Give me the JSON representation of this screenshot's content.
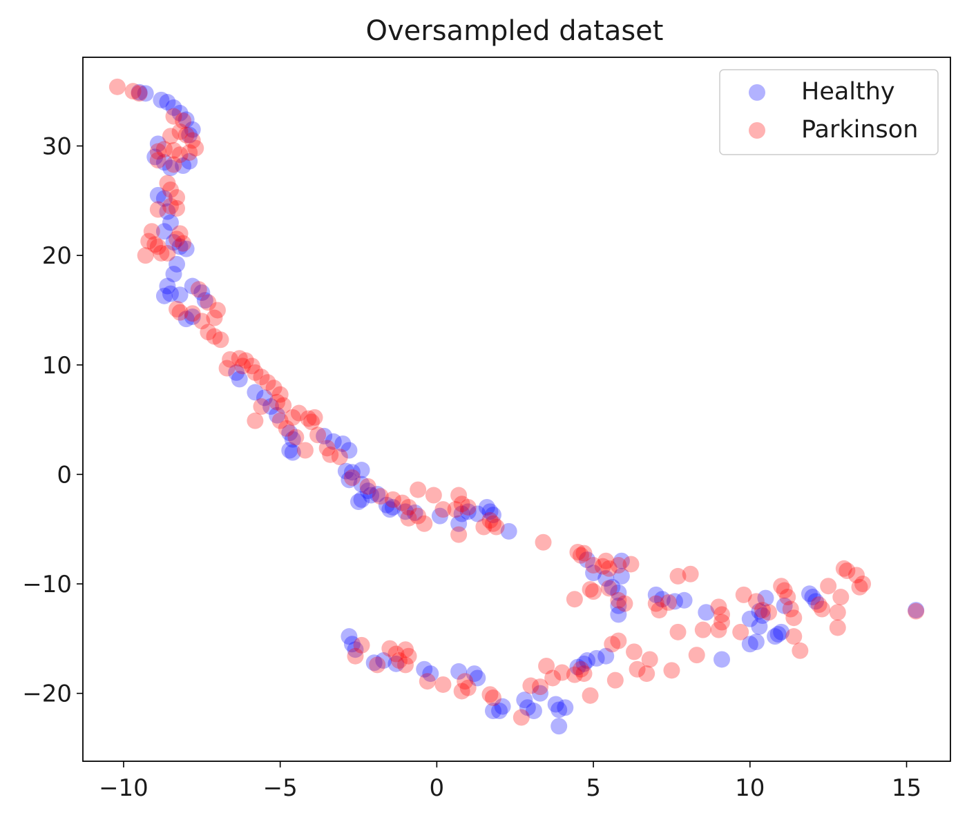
{
  "chart_data": {
    "type": "scatter",
    "title": "Oversampled dataset",
    "xlabel": "",
    "ylabel": "",
    "xlim": [
      -11.3,
      16.4
    ],
    "ylim": [
      -26.2,
      38.1
    ],
    "xticks": [
      -10,
      -5,
      0,
      5,
      10,
      15
    ],
    "yticks": [
      -20,
      -10,
      0,
      10,
      20,
      30
    ],
    "xtick_labels": [
      "−10",
      "−5",
      "0",
      "5",
      "10",
      "15"
    ],
    "ytick_labels": [
      "−20",
      "−10",
      "0",
      "10",
      "20",
      "30"
    ],
    "grid": false,
    "legend_position": "top-right",
    "series": [
      {
        "name": "Healthy",
        "color": "#0000ff",
        "alpha": 0.3,
        "points": [
          [
            -9.5,
            34.9
          ],
          [
            -9.3,
            34.8
          ],
          [
            -8.8,
            34.2
          ],
          [
            -8.6,
            34.0
          ],
          [
            -8.4,
            33.5
          ],
          [
            -8.2,
            33.0
          ],
          [
            -8.0,
            32.4
          ],
          [
            -7.8,
            31.5
          ],
          [
            -7.9,
            31.0
          ],
          [
            -8.9,
            30.2
          ],
          [
            -9.0,
            29.0
          ],
          [
            -8.7,
            28.5
          ],
          [
            -8.5,
            28.0
          ],
          [
            -8.1,
            28.2
          ],
          [
            -7.9,
            28.6
          ],
          [
            -8.9,
            25.5
          ],
          [
            -8.7,
            25.2
          ],
          [
            -8.6,
            24.0
          ],
          [
            -8.5,
            23.0
          ],
          [
            -8.7,
            22.2
          ],
          [
            -8.4,
            21.2
          ],
          [
            -8.2,
            20.8
          ],
          [
            -8.0,
            20.6
          ],
          [
            -8.3,
            19.2
          ],
          [
            -8.4,
            18.3
          ],
          [
            -8.6,
            17.2
          ],
          [
            -8.7,
            16.3
          ],
          [
            -8.5,
            16.5
          ],
          [
            -8.2,
            16.4
          ],
          [
            -7.8,
            17.2
          ],
          [
            -7.5,
            16.6
          ],
          [
            -7.4,
            15.9
          ],
          [
            -8.0,
            14.2
          ],
          [
            -7.8,
            14.4
          ],
          [
            -6.4,
            9.3
          ],
          [
            -6.3,
            8.7
          ],
          [
            -5.8,
            7.5
          ],
          [
            -5.5,
            7.0
          ],
          [
            -5.3,
            6.2
          ],
          [
            -5.1,
            5.4
          ],
          [
            -4.7,
            3.8
          ],
          [
            -4.6,
            3.2
          ],
          [
            -4.7,
            2.2
          ],
          [
            -4.6,
            2.0
          ],
          [
            -3.6,
            3.5
          ],
          [
            -3.3,
            3.0
          ],
          [
            -3.0,
            2.8
          ],
          [
            -2.8,
            2.2
          ],
          [
            -2.9,
            0.3
          ],
          [
            -2.7,
            0.2
          ],
          [
            -2.4,
            0.4
          ],
          [
            -2.8,
            -0.5
          ],
          [
            -2.4,
            -0.9
          ],
          [
            -2.2,
            -1.5
          ],
          [
            -2.4,
            -2.3
          ],
          [
            -2.5,
            -2.5
          ],
          [
            -2.1,
            -1.9
          ],
          [
            -1.9,
            -1.8
          ],
          [
            -1.6,
            -2.8
          ],
          [
            -1.5,
            -3.2
          ],
          [
            -1.4,
            -3.0
          ],
          [
            -1.0,
            -3.4
          ],
          [
            -0.7,
            -3.5
          ],
          [
            0.1,
            -3.8
          ],
          [
            0.7,
            -4.5
          ],
          [
            0.8,
            -3.6
          ],
          [
            1.0,
            -3.4
          ],
          [
            1.3,
            -3.6
          ],
          [
            1.6,
            -3.0
          ],
          [
            1.7,
            -3.4
          ],
          [
            1.8,
            -3.7
          ],
          [
            2.3,
            -5.2
          ],
          [
            4.8,
            -7.8
          ],
          [
            5.0,
            -9.0
          ],
          [
            5.4,
            -9.5
          ],
          [
            5.6,
            -10.3
          ],
          [
            5.8,
            -10.8
          ],
          [
            5.9,
            -9.3
          ],
          [
            5.9,
            -7.9
          ],
          [
            5.8,
            -12.8
          ],
          [
            5.8,
            -12.0
          ],
          [
            7.0,
            -11.0
          ],
          [
            7.2,
            -11.4
          ],
          [
            7.6,
            -11.6
          ],
          [
            7.9,
            -11.5
          ],
          [
            8.6,
            -12.6
          ],
          [
            9.1,
            -16.9
          ],
          [
            10.0,
            -15.5
          ],
          [
            10.2,
            -15.3
          ],
          [
            10.0,
            -13.2
          ],
          [
            10.4,
            -12.9
          ],
          [
            10.3,
            -12.5
          ],
          [
            10.5,
            -11.3
          ],
          [
            10.3,
            -13.9
          ],
          [
            10.8,
            -14.8
          ],
          [
            11.0,
            -14.4
          ],
          [
            10.9,
            -14.6
          ],
          [
            12.0,
            -11.2
          ],
          [
            12.1,
            -11.6
          ],
          [
            11.9,
            -10.9
          ],
          [
            11.1,
            -12.0
          ],
          [
            15.3,
            -12.4
          ],
          [
            -2.8,
            -14.8
          ],
          [
            -2.7,
            -15.5
          ],
          [
            -2.6,
            -16.0
          ],
          [
            -2.0,
            -17.2
          ],
          [
            -1.7,
            -17.0
          ],
          [
            -1.3,
            -17.3
          ],
          [
            -0.4,
            -17.8
          ],
          [
            -0.2,
            -18.2
          ],
          [
            0.7,
            -18.0
          ],
          [
            1.2,
            -18.2
          ],
          [
            1.3,
            -18.6
          ],
          [
            1.8,
            -21.6
          ],
          [
            2.1,
            -21.2
          ],
          [
            2.0,
            -21.6
          ],
          [
            2.8,
            -20.6
          ],
          [
            2.9,
            -21.3
          ],
          [
            3.1,
            -21.6
          ],
          [
            3.3,
            -20.0
          ],
          [
            3.8,
            -21.0
          ],
          [
            3.9,
            -21.5
          ],
          [
            4.1,
            -21.3
          ],
          [
            3.9,
            -23.0
          ],
          [
            4.5,
            -17.6
          ],
          [
            4.7,
            -17.3
          ],
          [
            4.8,
            -17.0
          ],
          [
            5.1,
            -16.8
          ],
          [
            5.4,
            -16.6
          ]
        ]
      },
      {
        "name": "Parkinson",
        "color": "#ff0000",
        "alpha": 0.3,
        "points": [
          [
            -10.2,
            35.4
          ],
          [
            -9.7,
            35.0
          ],
          [
            -9.5,
            34.8
          ],
          [
            -8.4,
            32.7
          ],
          [
            -8.1,
            32.3
          ],
          [
            -8.5,
            30.9
          ],
          [
            -8.2,
            31.3
          ],
          [
            -8.0,
            31.0
          ],
          [
            -7.8,
            30.5
          ],
          [
            -7.7,
            29.8
          ],
          [
            -8.9,
            29.5
          ],
          [
            -8.7,
            29.7
          ],
          [
            -8.4,
            29.6
          ],
          [
            -8.2,
            29.2
          ],
          [
            -7.9,
            29.4
          ],
          [
            -8.9,
            28.7
          ],
          [
            -8.4,
            28.3
          ],
          [
            -8.6,
            26.6
          ],
          [
            -8.5,
            26.0
          ],
          [
            -8.3,
            25.3
          ],
          [
            -8.5,
            24.5
          ],
          [
            -8.3,
            24.3
          ],
          [
            -8.9,
            24.2
          ],
          [
            -9.1,
            22.2
          ],
          [
            -9.2,
            21.3
          ],
          [
            -9.0,
            21.0
          ],
          [
            -8.9,
            20.8
          ],
          [
            -8.6,
            20.2
          ],
          [
            -8.3,
            21.5
          ],
          [
            -8.2,
            22.0
          ],
          [
            -8.1,
            21.1
          ],
          [
            -9.3,
            20.0
          ],
          [
            -8.8,
            20.2
          ],
          [
            -7.6,
            16.9
          ],
          [
            -7.3,
            15.7
          ],
          [
            -7.0,
            15.0
          ],
          [
            -7.1,
            14.3
          ],
          [
            -7.5,
            14.0
          ],
          [
            -7.8,
            14.7
          ],
          [
            -8.2,
            14.8
          ],
          [
            -8.3,
            15.1
          ],
          [
            -7.3,
            13.0
          ],
          [
            -7.1,
            12.6
          ],
          [
            -6.9,
            12.3
          ],
          [
            -6.6,
            10.5
          ],
          [
            -6.3,
            10.6
          ],
          [
            -6.1,
            10.4
          ],
          [
            -5.9,
            9.9
          ],
          [
            -5.8,
            9.3
          ],
          [
            -5.6,
            8.9
          ],
          [
            -6.7,
            9.7
          ],
          [
            -6.2,
            9.9
          ],
          [
            -5.4,
            8.4
          ],
          [
            -5.2,
            7.9
          ],
          [
            -5.0,
            7.3
          ],
          [
            -5.1,
            6.6
          ],
          [
            -4.9,
            6.3
          ],
          [
            -5.6,
            6.2
          ],
          [
            -5.8,
            4.9
          ],
          [
            -5.0,
            4.9
          ],
          [
            -4.6,
            5.2
          ],
          [
            -4.4,
            5.6
          ],
          [
            -4.1,
            5.1
          ],
          [
            -4.0,
            4.8
          ],
          [
            -3.9,
            5.2
          ],
          [
            -4.8,
            4.2
          ],
          [
            -4.5,
            3.4
          ],
          [
            -4.2,
            2.2
          ],
          [
            -3.8,
            3.6
          ],
          [
            -3.5,
            2.4
          ],
          [
            -3.4,
            1.8
          ],
          [
            -3.1,
            1.6
          ],
          [
            -2.7,
            -0.3
          ],
          [
            -2.2,
            -1.1
          ],
          [
            -1.8,
            -2.0
          ],
          [
            -1.4,
            -2.3
          ],
          [
            -1.1,
            -2.6
          ],
          [
            -0.9,
            -3.0
          ],
          [
            -0.6,
            -3.8
          ],
          [
            -0.9,
            -4.0
          ],
          [
            -0.4,
            -4.5
          ],
          [
            -0.6,
            -1.4
          ],
          [
            -0.1,
            -1.9
          ],
          [
            0.2,
            -3.2
          ],
          [
            0.7,
            -1.9
          ],
          [
            0.8,
            -2.7
          ],
          [
            0.6,
            -3.2
          ],
          [
            1.0,
            -3.0
          ],
          [
            0.7,
            -5.5
          ],
          [
            1.5,
            -4.8
          ],
          [
            1.8,
            -4.5
          ],
          [
            1.9,
            -4.8
          ],
          [
            1.7,
            -4.2
          ],
          [
            3.4,
            -6.2
          ],
          [
            4.5,
            -7.1
          ],
          [
            4.6,
            -7.4
          ],
          [
            4.7,
            -7.2
          ],
          [
            5.0,
            -8.3
          ],
          [
            5.3,
            -8.4
          ],
          [
            5.4,
            -7.9
          ],
          [
            5.8,
            -8.3
          ],
          [
            6.2,
            -8.2
          ],
          [
            5.5,
            -8.6
          ],
          [
            4.4,
            -11.4
          ],
          [
            4.9,
            -10.5
          ],
          [
            5.0,
            -10.7
          ],
          [
            5.5,
            -10.4
          ],
          [
            5.8,
            -11.5
          ],
          [
            6.0,
            -11.8
          ],
          [
            7.0,
            -11.8
          ],
          [
            7.1,
            -12.4
          ],
          [
            7.4,
            -11.7
          ],
          [
            7.7,
            -9.3
          ],
          [
            8.1,
            -9.1
          ],
          [
            7.7,
            -14.4
          ],
          [
            8.5,
            -14.2
          ],
          [
            9.1,
            -13.5
          ],
          [
            9.1,
            -12.8
          ],
          [
            9.0,
            -12.1
          ],
          [
            9.0,
            -14.2
          ],
          [
            9.7,
            -14.4
          ],
          [
            9.8,
            -11.0
          ],
          [
            10.2,
            -11.6
          ],
          [
            10.4,
            -12.4
          ],
          [
            10.6,
            -12.6
          ],
          [
            11.0,
            -10.2
          ],
          [
            11.1,
            -10.6
          ],
          [
            11.2,
            -11.2
          ],
          [
            11.3,
            -12.3
          ],
          [
            11.4,
            -13.1
          ],
          [
            11.4,
            -14.8
          ],
          [
            11.6,
            -16.1
          ],
          [
            12.2,
            -11.9
          ],
          [
            12.3,
            -12.3
          ],
          [
            12.5,
            -10.2
          ],
          [
            12.8,
            -12.6
          ],
          [
            12.9,
            -11.2
          ],
          [
            12.8,
            -14.0
          ],
          [
            13.0,
            -8.6
          ],
          [
            13.1,
            -8.8
          ],
          [
            13.4,
            -9.2
          ],
          [
            13.6,
            -10.0
          ],
          [
            13.5,
            -10.3
          ],
          [
            15.3,
            -12.5
          ],
          [
            -2.6,
            -16.6
          ],
          [
            -2.4,
            -15.6
          ],
          [
            -1.9,
            -17.4
          ],
          [
            -1.5,
            -15.9
          ],
          [
            -1.3,
            -16.4
          ],
          [
            -1.0,
            -16.0
          ],
          [
            -0.9,
            -16.6
          ],
          [
            -1.0,
            -17.4
          ],
          [
            -1.2,
            -17.0
          ],
          [
            -0.3,
            -18.9
          ],
          [
            0.2,
            -19.2
          ],
          [
            0.9,
            -18.9
          ],
          [
            1.0,
            -19.5
          ],
          [
            0.8,
            -19.8
          ],
          [
            1.7,
            -20.1
          ],
          [
            1.8,
            -20.4
          ],
          [
            2.7,
            -22.2
          ],
          [
            3.0,
            -19.3
          ],
          [
            3.3,
            -19.4
          ],
          [
            3.7,
            -18.6
          ],
          [
            3.5,
            -17.5
          ],
          [
            4.0,
            -18.1
          ],
          [
            4.4,
            -18.3
          ],
          [
            4.6,
            -17.8
          ],
          [
            4.7,
            -18.2
          ],
          [
            4.9,
            -20.2
          ],
          [
            5.6,
            -15.5
          ],
          [
            5.8,
            -15.2
          ],
          [
            6.3,
            -16.2
          ],
          [
            6.4,
            -17.8
          ],
          [
            5.7,
            -18.8
          ],
          [
            6.7,
            -18.2
          ],
          [
            6.8,
            -16.9
          ],
          [
            7.5,
            -17.9
          ],
          [
            8.3,
            -16.5
          ]
        ]
      }
    ]
  }
}
